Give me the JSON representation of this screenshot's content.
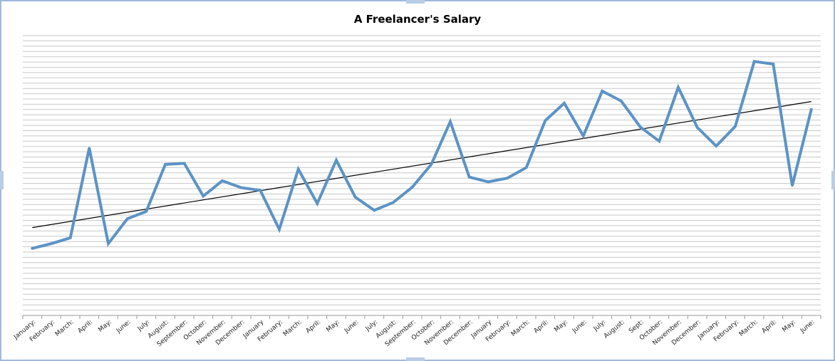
{
  "chart_data": {
    "type": "line",
    "title": "A Freelancer's Salary",
    "xlabel": "",
    "ylabel": "",
    "categories": [
      "January:",
      "February:",
      "March:",
      "April:",
      "May:",
      "June:",
      "July:",
      "August:",
      "September:",
      "October:",
      "November:",
      "December:",
      "January",
      "February:",
      "March:",
      "April:",
      "May:",
      "June:",
      "July:",
      "August:",
      "September:",
      "October:",
      "November:",
      "December:",
      "January",
      "February:",
      "March:",
      "April:",
      "May:",
      "June:",
      "July:",
      "August:",
      "Sept:",
      "October:",
      "November:",
      "December:",
      "January:",
      "February:",
      "March:",
      "April:",
      "May:",
      "June:"
    ],
    "series": [
      {
        "values": [
          7.7,
          8.6,
          9.7,
          26.7,
          8.6,
          13.3,
          14.7,
          23.6,
          23.8,
          17.6,
          20.5,
          19.2,
          18.7,
          11.3,
          22.7,
          16.2,
          24.4,
          17.4,
          14.9,
          16.4,
          19.3,
          23.6,
          31.7,
          21.2,
          20.3,
          21.0,
          23.0,
          31.9,
          35.2,
          29.0,
          37.5,
          35.6,
          30.7,
          28.0,
          38.2,
          30.6,
          27.1,
          30.8,
          43.1,
          42.6,
          19.6,
          34.0
        ],
        "color": "#5b93c6"
      }
    ],
    "trendline": {
      "type": "linear",
      "color": "#000000"
    },
    "ylim": [
      -5,
      48
    ],
    "grid": true,
    "legend": "none"
  }
}
